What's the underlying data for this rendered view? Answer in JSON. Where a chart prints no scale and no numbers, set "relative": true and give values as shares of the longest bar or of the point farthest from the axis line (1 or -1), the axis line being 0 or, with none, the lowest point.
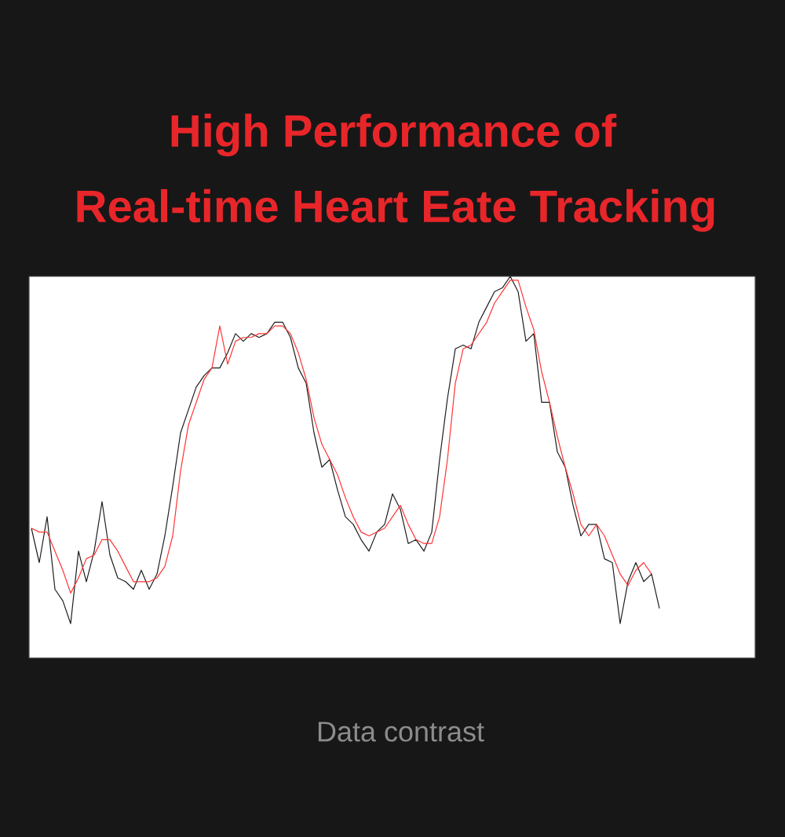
{
  "chart_data": {
    "type": "line",
    "title": "High Performance of",
    "subtitle": "Real-time Heart Eate Tracking",
    "relative": true,
    "annotations": [
      "Data contrast"
    ],
    "categories": [
      null,
      null,
      null,
      null,
      null,
      null,
      null,
      null,
      null,
      null,
      null,
      null,
      null,
      null,
      null,
      null,
      null,
      null,
      null,
      null,
      null,
      null,
      null,
      null,
      null,
      null,
      null,
      null,
      null,
      null,
      null,
      null,
      null,
      null,
      null,
      null,
      null,
      null,
      null,
      null,
      null,
      null,
      null,
      null,
      null,
      null,
      null,
      null,
      null,
      null,
      null,
      null,
      null,
      null,
      null,
      null,
      null,
      null,
      null,
      null,
      null,
      null,
      null,
      null,
      null,
      null,
      null,
      null,
      null,
      null,
      null,
      null,
      null,
      null,
      null,
      null,
      null,
      null,
      null,
      null,
      null
    ],
    "series": [
      {
        "color": "#1e1e1e",
        "values": [
          0.34,
          0.25,
          0.37,
          0.18,
          0.15,
          0.09,
          0.28,
          0.2,
          0.28,
          0.41,
          0.27,
          0.21,
          0.2,
          0.18,
          0.23,
          0.18,
          0.22,
          0.32,
          0.45,
          0.59,
          0.65,
          0.71,
          0.74,
          0.76,
          0.76,
          0.8,
          0.85,
          0.83,
          0.85,
          0.84,
          0.85,
          0.88,
          0.88,
          0.84,
          0.76,
          0.72,
          0.59,
          0.5,
          0.52,
          0.44,
          0.37,
          0.35,
          0.31,
          0.28,
          0.33,
          0.35,
          0.43,
          0.39,
          0.3,
          0.31,
          0.28,
          0.33,
          0.52,
          0.68,
          0.81,
          0.82,
          0.81,
          0.88,
          0.92,
          0.96,
          0.97,
          1.0,
          0.96,
          0.83,
          0.85,
          0.67,
          0.67,
          0.54,
          0.5,
          0.4,
          0.32,
          0.35,
          0.35,
          0.26,
          0.25,
          0.09,
          0.2,
          0.25,
          0.2,
          0.22,
          0.13
        ]
      },
      {
        "color": "#ff3333",
        "values": [
          0.34,
          0.33,
          0.33,
          0.28,
          0.23,
          0.17,
          0.21,
          0.26,
          0.27,
          0.31,
          0.31,
          0.28,
          0.24,
          0.2,
          0.2,
          0.2,
          0.21,
          0.24,
          0.32,
          0.49,
          0.61,
          0.67,
          0.73,
          0.76,
          0.87,
          0.77,
          0.83,
          0.84,
          0.84,
          0.85,
          0.85,
          0.87,
          0.87,
          0.85,
          0.8,
          0.73,
          0.63,
          0.56,
          0.52,
          0.48,
          0.42,
          0.37,
          0.33,
          0.32,
          0.33,
          0.34,
          0.37,
          0.4,
          0.35,
          0.31,
          0.3,
          0.3,
          0.37,
          0.52,
          0.72,
          0.81,
          0.82,
          0.85,
          0.88,
          0.93,
          0.96,
          0.99,
          0.99,
          0.92,
          0.86,
          0.75,
          0.67,
          0.58,
          0.5,
          0.43,
          0.35,
          0.32,
          0.35,
          0.32,
          0.27,
          0.22,
          0.19,
          0.23,
          0.25,
          0.22,
          null
        ]
      }
    ]
  }
}
